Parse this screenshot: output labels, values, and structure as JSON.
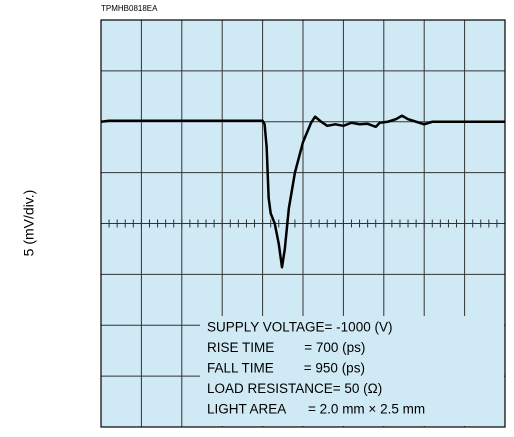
{
  "chart_data": {
    "type": "line",
    "code": "TPMHB0818EA",
    "y_label": "5 (mV/div.)",
    "annotations": [
      "SUPPLY VOLTAGE= -1000 (V)",
      "RISE TIME        = 700 (ps)",
      "FALL TIME        = 950 (ps)",
      "LOAD RESISTANCE= 50 (Ω)",
      "LIGHT AREA      = 2.0 mm × 2.5 mm"
    ],
    "x": [
      0,
      0.2,
      4.0,
      4.05,
      4.1,
      4.15,
      4.2,
      4.3,
      4.4,
      4.48,
      4.55,
      4.65,
      4.8,
      5.0,
      5.2,
      5.3,
      5.45,
      5.6,
      5.8,
      6.0,
      6.2,
      6.4,
      6.6,
      6.8,
      6.9,
      7.1,
      7.3,
      7.45,
      7.6,
      7.8,
      8.0,
      8.2,
      10
    ],
    "series": [
      {
        "color": "#000000",
        "values": [
          2.0,
          2.02,
          2.02,
          1.95,
          1.5,
          0.5,
          0.2,
          0.0,
          -0.4,
          -0.86,
          -0.5,
          0.3,
          1.0,
          1.6,
          1.98,
          2.1,
          2.0,
          1.92,
          1.95,
          1.92,
          1.98,
          1.95,
          1.96,
          1.9,
          1.98,
          2.0,
          2.05,
          2.12,
          2.05,
          2.0,
          1.95,
          2.0,
          2.0
        ]
      }
    ],
    "xlim": [
      0,
      10
    ],
    "ylim": [
      -4,
      4
    ],
    "xticks": [
      0,
      1,
      2,
      3,
      4,
      5,
      6,
      7,
      8,
      9,
      10
    ],
    "yticks": [
      -4,
      -3,
      -2,
      -1,
      0,
      1,
      2,
      3,
      4
    ],
    "grid": true,
    "background": "#cfe9f5"
  }
}
